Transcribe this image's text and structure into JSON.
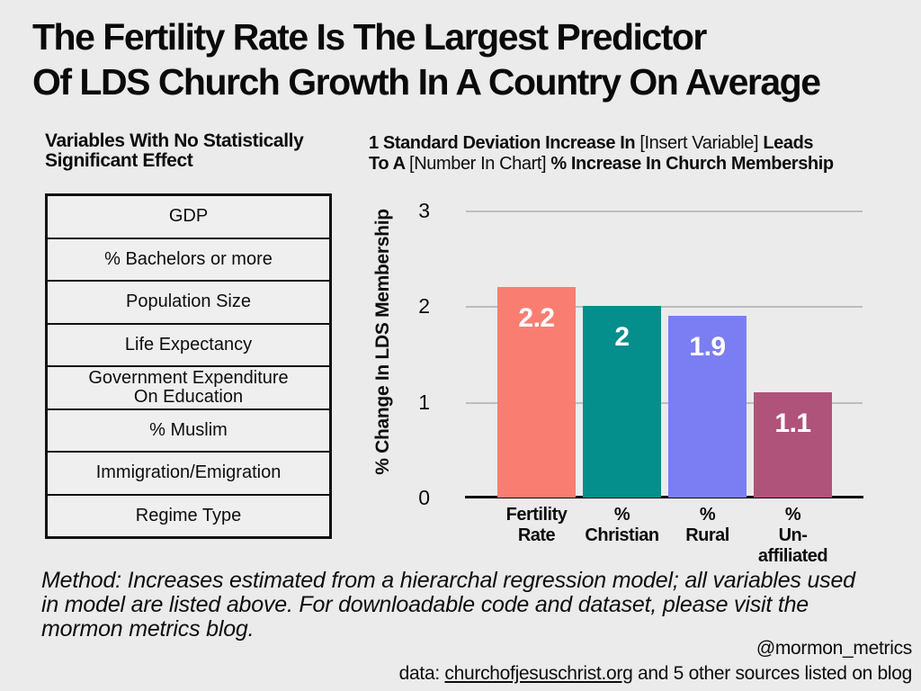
{
  "page": {
    "background": "#EBEBEB",
    "text_color": "#0D0D0D"
  },
  "title": {
    "line1": "The Fertility Rate Is The Largest Predictor",
    "line2": "Of LDS Church Growth In A Country On Average"
  },
  "left_panel": {
    "heading_line1": "Variables With No Statistically",
    "heading_line2": "Significant Effect",
    "rows": [
      "GDP",
      "% Bachelors or more",
      "Population Size",
      "Life Expectancy",
      "Government Expenditure\nOn  Education",
      "% Muslim",
      "Immigration/Emigration",
      "Regime Type"
    ]
  },
  "right_panel": {
    "heading_line1_segments": [
      {
        "text": "1 Standard Deviation Increase In ",
        "bold": true
      },
      {
        "text": "[Insert Variable] ",
        "bold": false
      },
      {
        "text": "Leads",
        "bold": true
      }
    ],
    "heading_line2_segments": [
      {
        "text": "To A ",
        "bold": true
      },
      {
        "text": "[Number In Chart] ",
        "bold": false
      },
      {
        "text": "% Increase In Church Membership",
        "bold": true
      }
    ]
  },
  "chart_data": {
    "type": "bar",
    "categories": [
      "Fertility Rate",
      "% Christian",
      "% Rural",
      "% Un-affiliated"
    ],
    "category_label_lines": [
      [
        "Fertility",
        "Rate"
      ],
      [
        "%",
        "Christian"
      ],
      [
        "%",
        "Rural"
      ],
      [
        "%",
        "Un-",
        "affiliated"
      ]
    ],
    "values": [
      2.2,
      2,
      1.9,
      1.1
    ],
    "value_labels": [
      "2.2",
      "2",
      "1.9",
      "1.1"
    ],
    "bar_colors": [
      "#FA7D72",
      "#048E8C",
      "#7B7EF2",
      "#B0537A"
    ],
    "value_label_color": "#FFFFFF",
    "xlabel": "",
    "ylabel": "% Change In LDS Membership",
    "ylim": [
      0,
      3
    ],
    "yticks": [
      0,
      1,
      2,
      3
    ],
    "gridlines": [
      1,
      2,
      3
    ],
    "gridline_color": "#BDBDBD",
    "legend": "none",
    "grid": "horizontal"
  },
  "method_note": {
    "lines": [
      "Method: Increases estimated from a hierarchal regression model; all variables used",
      "in model are listed above. For downloadable code and dataset, please visit the",
      "mormon metrics blog."
    ]
  },
  "footer": {
    "handle": "@mormon_metrics",
    "data_prefix": "data: ",
    "data_link": "churchofjesuschrist.org",
    "data_suffix": " and 5 other sources listed on blog"
  }
}
